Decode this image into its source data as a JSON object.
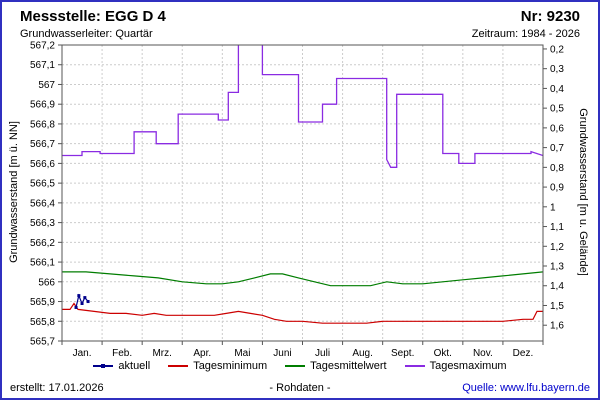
{
  "header": {
    "title": "Messstelle: EGG D 4",
    "station_no": "Nr: 9230",
    "aquifer": "Grundwasserleiter: Quartär",
    "period": "Zeitraum: 1984 - 2026"
  },
  "footer": {
    "created": "erstellt: 17.01.2026",
    "center": "- Rohdaten -",
    "source": "Quelle: www.lfu.bayern.de"
  },
  "legend": [
    {
      "label": "aktuell",
      "color": "#00008b",
      "marker": "line+square"
    },
    {
      "label": "Tagesminimum",
      "color": "#cc0000",
      "marker": "line"
    },
    {
      "label": "Tagesmittelwert",
      "color": "#007d00",
      "marker": "line"
    },
    {
      "label": "Tagesmaximum",
      "color": "#8a2be2",
      "marker": "line"
    }
  ],
  "chart_data": {
    "type": "line",
    "title": "",
    "xlabel": "",
    "ylabel_left": "Grundwasserstand [m ü. NN]",
    "ylabel_right": "Grundwasserstand [m u. Gelände]",
    "ylim_left": [
      565.7,
      567.2
    ],
    "grid": true,
    "legend_position": "bottom",
    "x_categories": [
      "Jan.",
      "Feb.",
      "Mrz.",
      "Apr.",
      "Mai",
      "Juni",
      "Juli",
      "Aug.",
      "Sept.",
      "Okt.",
      "Nov.",
      "Dez."
    ],
    "y_ticks_left": [
      [
        567.2,
        "567,2"
      ],
      [
        567.1,
        "567,1"
      ],
      [
        567.0,
        "567"
      ],
      [
        566.9,
        "566,9"
      ],
      [
        566.8,
        "566,8"
      ],
      [
        566.7,
        "566,7"
      ],
      [
        566.6,
        "566,6"
      ],
      [
        566.5,
        "566,5"
      ],
      [
        566.4,
        "566,4"
      ],
      [
        566.3,
        "566,3"
      ],
      [
        566.2,
        "566,2"
      ],
      [
        566.1,
        "566,1"
      ],
      [
        566.0,
        "566"
      ],
      [
        565.9,
        "565,9"
      ],
      [
        565.8,
        "565,8"
      ],
      [
        565.7,
        "565,7"
      ]
    ],
    "right_axis": {
      "ground_level": 567.38,
      "ticks": [
        [
          0.2,
          "0,2"
        ],
        [
          0.3,
          "0,3"
        ],
        [
          0.4,
          "0,4"
        ],
        [
          0.5,
          "0,5"
        ],
        [
          0.6,
          "0,6"
        ],
        [
          0.7,
          "0,7"
        ],
        [
          0.8,
          "0,8"
        ],
        [
          0.9,
          "0,9"
        ],
        [
          1.0,
          "1"
        ],
        [
          1.1,
          "1,1"
        ],
        [
          1.2,
          "1,2"
        ],
        [
          1.3,
          "1,3"
        ],
        [
          1.4,
          "1,4"
        ],
        [
          1.5,
          "1,5"
        ],
        [
          1.6,
          "1,6"
        ]
      ]
    },
    "series": [
      {
        "name": "Tagesmittelwert",
        "color": "#007d00",
        "width": 1.2,
        "markers": false,
        "points": [
          [
            0,
            566.05
          ],
          [
            0.6,
            566.05
          ],
          [
            1.2,
            566.04
          ],
          [
            1.8,
            566.03
          ],
          [
            2.4,
            566.02
          ],
          [
            3.0,
            566.0
          ],
          [
            3.6,
            565.99
          ],
          [
            4.0,
            565.99
          ],
          [
            4.4,
            566.0
          ],
          [
            4.8,
            566.02
          ],
          [
            5.2,
            566.04
          ],
          [
            5.5,
            566.04
          ],
          [
            5.9,
            566.02
          ],
          [
            6.3,
            566.0
          ],
          [
            6.7,
            565.98
          ],
          [
            7.2,
            565.98
          ],
          [
            7.7,
            565.98
          ],
          [
            8.1,
            566.0
          ],
          [
            8.5,
            565.99
          ],
          [
            9.0,
            565.99
          ],
          [
            9.5,
            566.0
          ],
          [
            10.0,
            566.01
          ],
          [
            10.5,
            566.02
          ],
          [
            11.0,
            566.03
          ],
          [
            11.5,
            566.04
          ],
          [
            12,
            566.05
          ]
        ]
      },
      {
        "name": "Tagesminimum",
        "color": "#cc0000",
        "width": 1.2,
        "markers": false,
        "points": [
          [
            0,
            565.86
          ],
          [
            0.2,
            565.86
          ],
          [
            0.3,
            565.89
          ],
          [
            0.4,
            565.86
          ],
          [
            0.8,
            565.85
          ],
          [
            1.2,
            565.84
          ],
          [
            1.6,
            565.84
          ],
          [
            2.0,
            565.83
          ],
          [
            2.3,
            565.84
          ],
          [
            2.6,
            565.83
          ],
          [
            3.2,
            565.83
          ],
          [
            3.8,
            565.83
          ],
          [
            4.1,
            565.84
          ],
          [
            4.4,
            565.85
          ],
          [
            4.7,
            565.84
          ],
          [
            5.0,
            565.83
          ],
          [
            5.3,
            565.81
          ],
          [
            5.6,
            565.8
          ],
          [
            6.0,
            565.8
          ],
          [
            6.5,
            565.79
          ],
          [
            7.0,
            565.79
          ],
          [
            7.6,
            565.79
          ],
          [
            8.0,
            565.8
          ],
          [
            8.6,
            565.8
          ],
          [
            9.2,
            565.8
          ],
          [
            9.8,
            565.8
          ],
          [
            10.4,
            565.8
          ],
          [
            11.0,
            565.8
          ],
          [
            11.5,
            565.81
          ],
          [
            11.75,
            565.81
          ],
          [
            11.85,
            565.85
          ],
          [
            12,
            565.85
          ]
        ]
      },
      {
        "name": "Tagesmaximum",
        "color": "#8a2be2",
        "width": 1.3,
        "markers": false,
        "points": [
          [
            0,
            566.64
          ],
          [
            0.5,
            566.64
          ],
          [
            0.5,
            566.66
          ],
          [
            0.95,
            566.66
          ],
          [
            0.95,
            566.65
          ],
          [
            1.8,
            566.65
          ],
          [
            1.8,
            566.76
          ],
          [
            2.35,
            566.76
          ],
          [
            2.35,
            566.7
          ],
          [
            2.9,
            566.7
          ],
          [
            2.9,
            566.85
          ],
          [
            3.9,
            566.85
          ],
          [
            3.9,
            566.82
          ],
          [
            4.15,
            566.82
          ],
          [
            4.15,
            566.96
          ],
          [
            4.4,
            566.96
          ],
          [
            4.4,
            567.32
          ],
          [
            5.0,
            567.32
          ],
          [
            5.0,
            567.05
          ],
          [
            5.9,
            567.05
          ],
          [
            5.9,
            566.81
          ],
          [
            6.5,
            566.81
          ],
          [
            6.5,
            566.9
          ],
          [
            6.85,
            566.9
          ],
          [
            6.85,
            567.03
          ],
          [
            8.1,
            567.03
          ],
          [
            8.1,
            566.62
          ],
          [
            8.2,
            566.58
          ],
          [
            8.35,
            566.58
          ],
          [
            8.35,
            566.95
          ],
          [
            9.5,
            566.95
          ],
          [
            9.5,
            566.65
          ],
          [
            9.9,
            566.65
          ],
          [
            9.9,
            566.6
          ],
          [
            10.3,
            566.6
          ],
          [
            10.3,
            566.65
          ],
          [
            11.7,
            566.65
          ],
          [
            11.7,
            566.66
          ],
          [
            12,
            566.64
          ]
        ]
      },
      {
        "name": "aktuell",
        "color": "#00008b",
        "width": 1.2,
        "markers": true,
        "points": [
          [
            0.35,
            565.87
          ],
          [
            0.42,
            565.93
          ],
          [
            0.5,
            565.89
          ],
          [
            0.57,
            565.92
          ],
          [
            0.65,
            565.9
          ]
        ]
      }
    ]
  }
}
